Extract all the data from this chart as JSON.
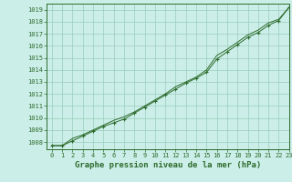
{
  "xlabel": "Graphe pression niveau de la mer (hPa)",
  "xlim": [
    -0.5,
    23
  ],
  "ylim": [
    1007.4,
    1019.5
  ],
  "yticks": [
    1008,
    1009,
    1010,
    1011,
    1012,
    1013,
    1014,
    1015,
    1016,
    1017,
    1018,
    1019
  ],
  "xticks": [
    0,
    1,
    2,
    3,
    4,
    5,
    6,
    7,
    8,
    9,
    10,
    11,
    12,
    13,
    14,
    15,
    16,
    17,
    18,
    19,
    20,
    21,
    22,
    23
  ],
  "xtick_labels": [
    "0",
    "1",
    "2",
    "3",
    "4",
    "5",
    "6",
    "7",
    "8",
    "9",
    "10",
    "11",
    "12",
    "13",
    "14",
    "15",
    "16",
    "17",
    "18",
    "19",
    "20",
    "21",
    "22",
    "23"
  ],
  "bg_color": "#cceee8",
  "grid_color": "#99ccbb",
  "line_color": "#2d6b2d",
  "line1_x": [
    0,
    1,
    2,
    3,
    4,
    5,
    6,
    7,
    8,
    9,
    10,
    11,
    12,
    13,
    14,
    15,
    16,
    17,
    18,
    19,
    20,
    21,
    22,
    23
  ],
  "line1_y": [
    1007.7,
    1007.7,
    1008.1,
    1008.5,
    1008.9,
    1009.3,
    1009.6,
    1009.9,
    1010.4,
    1010.9,
    1011.4,
    1011.9,
    1012.4,
    1012.9,
    1013.3,
    1013.8,
    1014.9,
    1015.5,
    1016.1,
    1016.7,
    1017.1,
    1017.7,
    1018.1,
    1019.2
  ],
  "line2_x": [
    0,
    1,
    2,
    3,
    4,
    5,
    6,
    7,
    8,
    9,
    10,
    11,
    12,
    13,
    14,
    15,
    16,
    17,
    18,
    19,
    20,
    21,
    22,
    23
  ],
  "line2_y": [
    1007.7,
    1007.7,
    1008.3,
    1008.6,
    1009.0,
    1009.4,
    1009.8,
    1010.1,
    1010.5,
    1011.0,
    1011.5,
    1012.0,
    1012.6,
    1013.0,
    1013.4,
    1014.0,
    1015.2,
    1015.7,
    1016.3,
    1016.9,
    1017.3,
    1017.9,
    1018.2,
    1019.2
  ],
  "tick_fontsize": 5.0,
  "label_fontsize": 6.5
}
